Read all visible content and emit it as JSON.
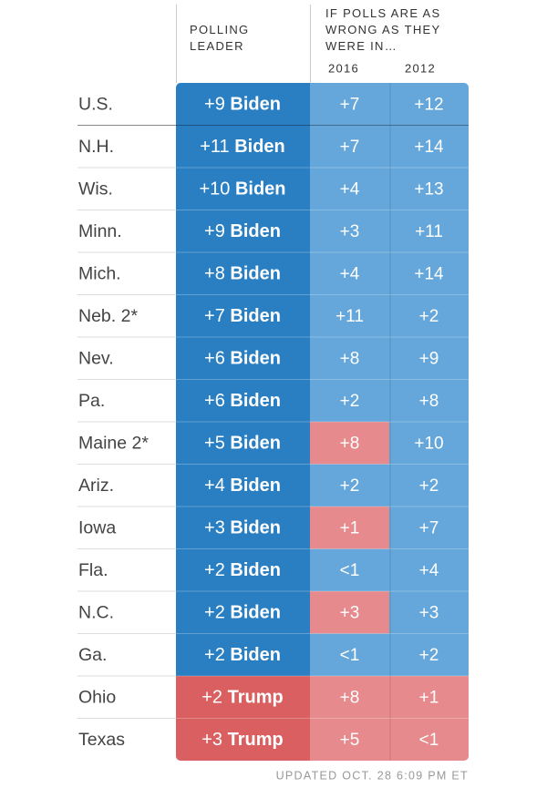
{
  "header": {
    "leader_title": "POLLING LEADER",
    "wrong_title": "IF POLLS ARE AS WRONG AS THEY WERE IN…",
    "years": [
      "2016",
      "2012"
    ]
  },
  "rows": [
    {
      "label": "U.S.",
      "lead": {
        "margin": "+9",
        "name": "Biden",
        "color": "#2a7fc3"
      },
      "cells": [
        {
          "text": "+7",
          "color": "#65a7da"
        },
        {
          "text": "+12",
          "color": "#65a7da"
        }
      ]
    },
    {
      "label": "N.H.",
      "lead": {
        "margin": "+11",
        "name": "Biden",
        "color": "#2a7fc3"
      },
      "cells": [
        {
          "text": "+7",
          "color": "#65a7da"
        },
        {
          "text": "+14",
          "color": "#65a7da"
        }
      ]
    },
    {
      "label": "Wis.",
      "lead": {
        "margin": "+10",
        "name": "Biden",
        "color": "#2a7fc3"
      },
      "cells": [
        {
          "text": "+4",
          "color": "#65a7da"
        },
        {
          "text": "+13",
          "color": "#65a7da"
        }
      ]
    },
    {
      "label": "Minn.",
      "lead": {
        "margin": "+9",
        "name": "Biden",
        "color": "#2a7fc3"
      },
      "cells": [
        {
          "text": "+3",
          "color": "#65a7da"
        },
        {
          "text": "+11",
          "color": "#65a7da"
        }
      ]
    },
    {
      "label": "Mich.",
      "lead": {
        "margin": "+8",
        "name": "Biden",
        "color": "#2a7fc3"
      },
      "cells": [
        {
          "text": "+4",
          "color": "#65a7da"
        },
        {
          "text": "+14",
          "color": "#65a7da"
        }
      ]
    },
    {
      "label": "Neb. 2*",
      "lead": {
        "margin": "+7",
        "name": "Biden",
        "color": "#2a7fc3"
      },
      "cells": [
        {
          "text": "+11",
          "color": "#65a7da"
        },
        {
          "text": "+2",
          "color": "#65a7da"
        }
      ]
    },
    {
      "label": "Nev.",
      "lead": {
        "margin": "+6",
        "name": "Biden",
        "color": "#2a7fc3"
      },
      "cells": [
        {
          "text": "+8",
          "color": "#65a7da"
        },
        {
          "text": "+9",
          "color": "#65a7da"
        }
      ]
    },
    {
      "label": "Pa.",
      "lead": {
        "margin": "+6",
        "name": "Biden",
        "color": "#2a7fc3"
      },
      "cells": [
        {
          "text": "+2",
          "color": "#65a7da"
        },
        {
          "text": "+8",
          "color": "#65a7da"
        }
      ]
    },
    {
      "label": "Maine 2*",
      "lead": {
        "margin": "+5",
        "name": "Biden",
        "color": "#2a7fc3"
      },
      "cells": [
        {
          "text": "+8",
          "color": "#e68a8d"
        },
        {
          "text": "+10",
          "color": "#65a7da"
        }
      ]
    },
    {
      "label": "Ariz.",
      "lead": {
        "margin": "+4",
        "name": "Biden",
        "color": "#2a7fc3"
      },
      "cells": [
        {
          "text": "+2",
          "color": "#65a7da"
        },
        {
          "text": "+2",
          "color": "#65a7da"
        }
      ]
    },
    {
      "label": "Iowa",
      "lead": {
        "margin": "+3",
        "name": "Biden",
        "color": "#2a7fc3"
      },
      "cells": [
        {
          "text": "+1",
          "color": "#e68a8d"
        },
        {
          "text": "+7",
          "color": "#65a7da"
        }
      ]
    },
    {
      "label": "Fla.",
      "lead": {
        "margin": "+2",
        "name": "Biden",
        "color": "#2a7fc3"
      },
      "cells": [
        {
          "text": "<1",
          "color": "#65a7da"
        },
        {
          "text": "+4",
          "color": "#65a7da"
        }
      ]
    },
    {
      "label": "N.C.",
      "lead": {
        "margin": "+2",
        "name": "Biden",
        "color": "#2a7fc3"
      },
      "cells": [
        {
          "text": "+3",
          "color": "#e68a8d"
        },
        {
          "text": "+3",
          "color": "#65a7da"
        }
      ]
    },
    {
      "label": "Ga.",
      "lead": {
        "margin": "+2",
        "name": "Biden",
        "color": "#2a7fc3"
      },
      "cells": [
        {
          "text": "<1",
          "color": "#65a7da"
        },
        {
          "text": "+2",
          "color": "#65a7da"
        }
      ]
    },
    {
      "label": "Ohio",
      "lead": {
        "margin": "+2",
        "name": "Trump",
        "color": "#d95f61"
      },
      "cells": [
        {
          "text": "+8",
          "color": "#e68a8d"
        },
        {
          "text": "+1",
          "color": "#e68a8d"
        }
      ]
    },
    {
      "label": "Texas",
      "lead": {
        "margin": "+3",
        "name": "Trump",
        "color": "#d95f61"
      },
      "cells": [
        {
          "text": "+5",
          "color": "#e68a8d"
        },
        {
          "text": "<1",
          "color": "#e68a8d"
        }
      ]
    }
  ],
  "footer": "UPDATED OCT. 28 6:09 PM ET"
}
